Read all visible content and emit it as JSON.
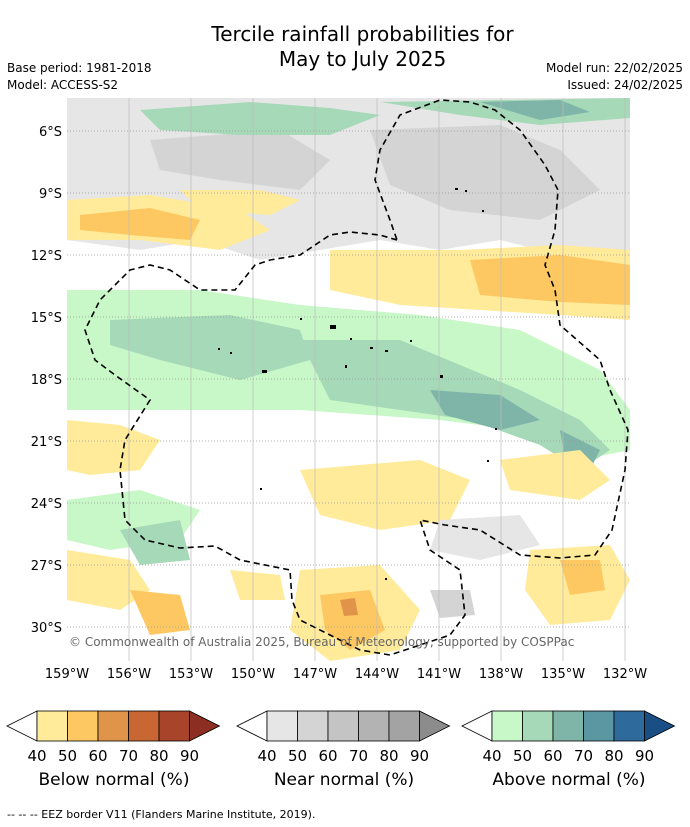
{
  "header": {
    "title_line1": "Tercile rainfall probabilities for",
    "title_line2": "May to July 2025",
    "base_period": "Base period: 1981-2018",
    "model": "Model: ACCESS-S2",
    "model_run": "Model run: 22/02/2025",
    "issued": "Issued: 24/02/2025"
  },
  "map": {
    "lat_labels": [
      "6°S",
      "9°S",
      "12°S",
      "15°S",
      "18°S",
      "21°S",
      "24°S",
      "27°S",
      "30°S"
    ],
    "lon_labels": [
      "159°W",
      "156°W",
      "153°W",
      "150°W",
      "147°W",
      "144°W",
      "141°W",
      "138°W",
      "135°W",
      "132°W"
    ],
    "copyright": "© Commonwealth of Australia 2025, Bureau of Meteorology, supported by COSPPac"
  },
  "legends": [
    {
      "title": "Below normal (%)",
      "ticks": [
        "40",
        "50",
        "60",
        "70",
        "80",
        "90"
      ],
      "colors": [
        "#ffeb99",
        "#fdc862",
        "#e0944a",
        "#c96734",
        "#a8442a",
        "#8c2f22"
      ]
    },
    {
      "title": "Near normal (%)",
      "ticks": [
        "40",
        "50",
        "60",
        "70",
        "80",
        "90"
      ],
      "colors": [
        "#e6e6e6",
        "#d4d4d4",
        "#c4c4c4",
        "#b3b3b3",
        "#a3a3a3",
        "#8c8c8c"
      ]
    },
    {
      "title": "Above normal (%)",
      "ticks": [
        "40",
        "50",
        "60",
        "70",
        "80",
        "90"
      ],
      "colors": [
        "#c8f7c8",
        "#a6d9b8",
        "#7fb5a8",
        "#5b96a3",
        "#2e6a9c",
        "#1a4f85"
      ]
    }
  ],
  "footer": "--  --  -- EEZ border V11 (Flanders Marine Institute, 2019)."
}
